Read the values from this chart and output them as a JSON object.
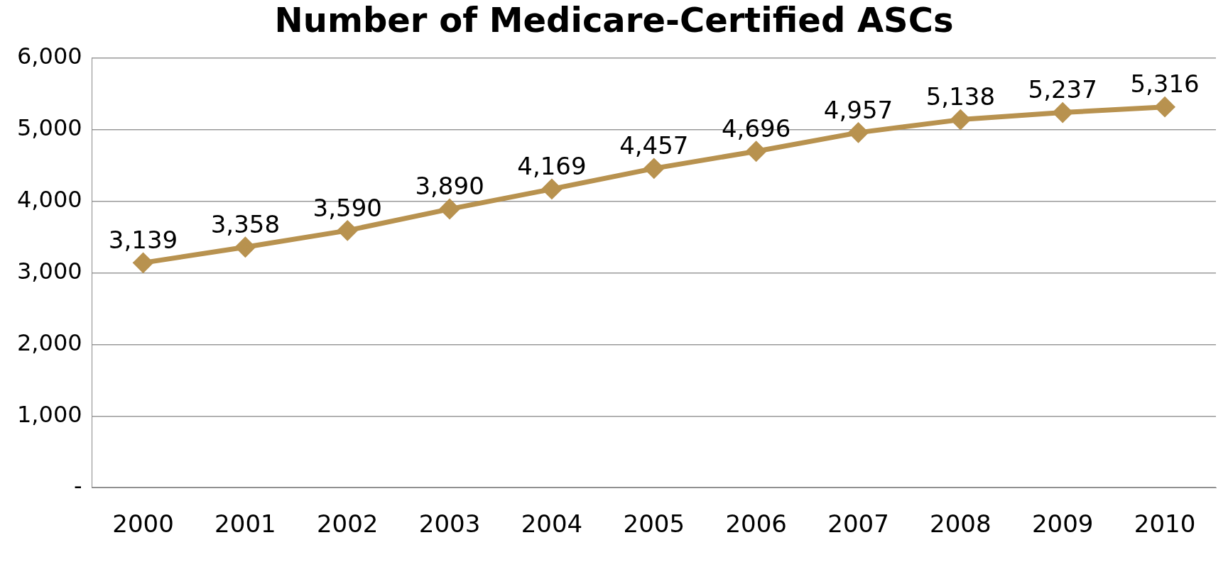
{
  "chart_data": {
    "type": "line",
    "title": "Number of Medicare-Certified ASCs",
    "categories": [
      "2000",
      "2001",
      "2002",
      "2003",
      "2004",
      "2005",
      "2006",
      "2007",
      "2008",
      "2009",
      "2010"
    ],
    "series": [
      {
        "color": "#b8924f",
        "values": [
          3139,
          3358,
          3590,
          3890,
          4169,
          4457,
          4696,
          4957,
          5138,
          5237,
          5316
        ],
        "value_labels": [
          "3,139",
          "3,358",
          "3,590",
          "3,890",
          "4,169",
          "4,457",
          "4,696",
          "4,957",
          "5,138",
          "5,237",
          "5,316"
        ]
      }
    ],
    "ylim": [
      0,
      6000
    ],
    "yticks": [
      {
        "value": 0,
        "label": "-"
      },
      {
        "value": 1000,
        "label": "1,000"
      },
      {
        "value": 2000,
        "label": "2,000"
      },
      {
        "value": 3000,
        "label": "3,000"
      },
      {
        "value": 4000,
        "label": "4,000"
      },
      {
        "value": 5000,
        "label": "5,000"
      },
      {
        "value": 6000,
        "label": "6,000"
      }
    ],
    "grid": "y",
    "legend": false,
    "marker": "diamond",
    "line_style": "solid"
  }
}
